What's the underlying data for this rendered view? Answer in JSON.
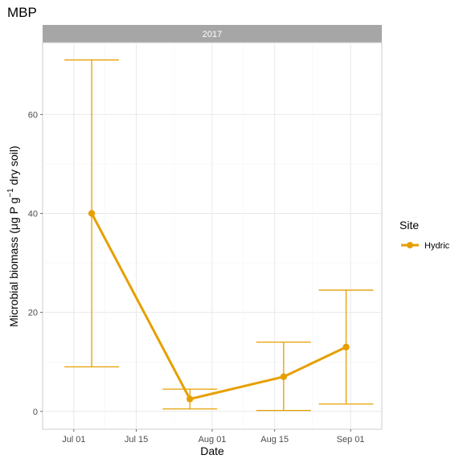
{
  "chart_data": {
    "type": "line",
    "title": "MBP",
    "facet_label": "2017",
    "xlabel": "Date",
    "ylabel": {
      "prefix": "Microbial biomass (",
      "mu": "μ",
      "mid": "g P g",
      "sup": "−1",
      "suffix": " dry soil)"
    },
    "x_ticks": [
      "Jul 01",
      "Jul 15",
      "Aug 01",
      "Aug 15",
      "Sep 01"
    ],
    "y_ticks": [
      0,
      20,
      40,
      60
    ],
    "ylim": [
      -3.6,
      74.5
    ],
    "xlim": [
      "2017-06-24",
      "2017-09-08"
    ],
    "grid": true,
    "legend_title": "Site",
    "legend_position": "right",
    "series": [
      {
        "name": "Hydric",
        "color": "#E69F00",
        "points": [
          {
            "x": "2017-07-05",
            "y": 40,
            "ymin": 9,
            "ymax": 71
          },
          {
            "x": "2017-07-27",
            "y": 2.5,
            "ymin": 0.5,
            "ymax": 4.5
          },
          {
            "x": "2017-08-17",
            "y": 7,
            "ymin": 0.2,
            "ymax": 14
          },
          {
            "x": "2017-08-31",
            "y": 13,
            "ymin": 1.5,
            "ymax": 24.5
          }
        ]
      }
    ]
  }
}
